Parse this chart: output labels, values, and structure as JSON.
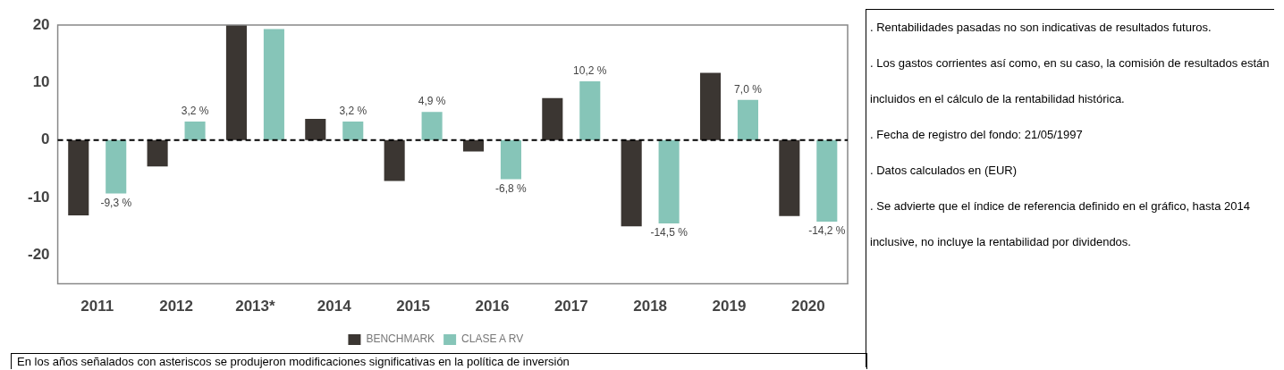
{
  "chart_data": {
    "type": "bar",
    "categories": [
      "2011",
      "2012",
      "2013*",
      "2014",
      "2015",
      "2016",
      "2017",
      "2018",
      "2019",
      "2020"
    ],
    "series": [
      {
        "name": "BENCHMARK",
        "color": "#3b3632",
        "values": [
          -13.1,
          -4.6,
          20,
          3.7,
          -7.1,
          -2.0,
          7.3,
          -15.0,
          11.7,
          -13.2
        ]
      },
      {
        "name": "CLASE A RV",
        "color": "#86c5b8",
        "values": [
          -9.3,
          3.2,
          19.3,
          3.2,
          4.9,
          -6.8,
          10.2,
          -14.5,
          7.0,
          -14.2
        ],
        "value_labels": [
          "-9,3 %",
          "3,2 %",
          null,
          "3,2 %",
          "4,9 %",
          "-6,8 %",
          "10,2 %",
          "-14,5 %",
          "7,0 %",
          "-14,2 %"
        ]
      }
    ],
    "ylim": [
      -25,
      20
    ],
    "yticks": [
      -20,
      -10,
      0,
      10,
      20
    ],
    "grid": false,
    "legend": "bottom",
    "ref_lines": [
      {
        "axis": "y",
        "value": 0,
        "color": "#000000",
        "line_style": "dashed"
      }
    ],
    "annotations": [
      "En los años señalados con asteriscos se produjeron modificaciones significativas en la política de inversión",
      ". Rentabilidades pasadas no son indicativas de resultados futuros.",
      ". Los gastos corrientes así como, en su caso, la comisión de resultados están incluidos en el cálculo de la rentabilidad histórica.",
      ". Fecha de registro del fondo: 21/05/1997",
      ". Datos calculados en (EUR)",
      ". Se advierte que el  índice de referencia definido en el gráfico, hasta 2014 inclusive, no incluye la rentabilidad por dividendos."
    ]
  }
}
